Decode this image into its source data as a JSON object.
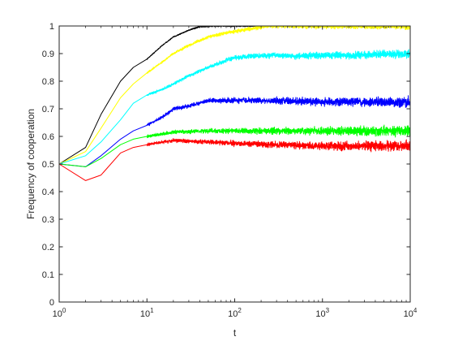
{
  "chart_data": {
    "type": "line",
    "title": "",
    "xlabel": "t",
    "ylabel": "Frequency of cooperation",
    "xscale": "log",
    "xlim": [
      1,
      10000
    ],
    "ylim": [
      0,
      1
    ],
    "grid": false,
    "legend": "none",
    "x_ticks": [
      {
        "value": 1,
        "base": "10",
        "exp": "0"
      },
      {
        "value": 10,
        "base": "10",
        "exp": "1"
      },
      {
        "value": 100,
        "base": "10",
        "exp": "2"
      },
      {
        "value": 1000,
        "base": "10",
        "exp": "3"
      },
      {
        "value": 10000,
        "base": "10",
        "exp": "4"
      }
    ],
    "y_ticks": [
      {
        "value": 0,
        "label": "0"
      },
      {
        "value": 0.1,
        "label": "0.1"
      },
      {
        "value": 0.2,
        "label": "0.2"
      },
      {
        "value": 0.3,
        "label": "0.3"
      },
      {
        "value": 0.4,
        "label": "0.4"
      },
      {
        "value": 0.5,
        "label": "0.5"
      },
      {
        "value": 0.6,
        "label": "0.6"
      },
      {
        "value": 0.7,
        "label": "0.7"
      },
      {
        "value": 0.8,
        "label": "0.8"
      },
      {
        "value": 0.9,
        "label": "0.9"
      },
      {
        "value": 1,
        "label": "1"
      }
    ],
    "series": [
      {
        "color": "#000000",
        "noise": 0.004,
        "points": [
          [
            1,
            0.5
          ],
          [
            2,
            0.56
          ],
          [
            3,
            0.68
          ],
          [
            5,
            0.8
          ],
          [
            7,
            0.85
          ],
          [
            10,
            0.88
          ],
          [
            15,
            0.93
          ],
          [
            20,
            0.96
          ],
          [
            30,
            0.985
          ],
          [
            40,
            0.997
          ],
          [
            60,
            1
          ],
          [
            100,
            1
          ],
          [
            10000,
            1
          ]
        ]
      },
      {
        "color": "#ffff00",
        "noise": 0.008,
        "points": [
          [
            1,
            0.5
          ],
          [
            2,
            0.545
          ],
          [
            3,
            0.63
          ],
          [
            5,
            0.74
          ],
          [
            7,
            0.79
          ],
          [
            10,
            0.83
          ],
          [
            15,
            0.87
          ],
          [
            20,
            0.9
          ],
          [
            30,
            0.93
          ],
          [
            50,
            0.96
          ],
          [
            80,
            0.975
          ],
          [
            150,
            0.99
          ],
          [
            250,
            1
          ],
          [
            10000,
            1
          ]
        ]
      },
      {
        "color": "#00ffff",
        "noise": 0.01,
        "points": [
          [
            1,
            0.5
          ],
          [
            2,
            0.53
          ],
          [
            3,
            0.58
          ],
          [
            5,
            0.66
          ],
          [
            7,
            0.72
          ],
          [
            10,
            0.75
          ],
          [
            15,
            0.77
          ],
          [
            20,
            0.79
          ],
          [
            30,
            0.82
          ],
          [
            50,
            0.85
          ],
          [
            80,
            0.875
          ],
          [
            100,
            0.885
          ],
          [
            150,
            0.89
          ],
          [
            300,
            0.895
          ],
          [
            500,
            0.89
          ],
          [
            1000,
            0.895
          ],
          [
            2000,
            0.893
          ],
          [
            10000,
            0.9
          ]
        ]
      },
      {
        "color": "#0000ff",
        "noise": 0.012,
        "points": [
          [
            1,
            0.5
          ],
          [
            2,
            0.49
          ],
          [
            3,
            0.53
          ],
          [
            5,
            0.59
          ],
          [
            7,
            0.62
          ],
          [
            10,
            0.64
          ],
          [
            15,
            0.67
          ],
          [
            20,
            0.7
          ],
          [
            30,
            0.71
          ],
          [
            50,
            0.73
          ],
          [
            100,
            0.73
          ],
          [
            300,
            0.73
          ],
          [
            1000,
            0.725
          ],
          [
            10000,
            0.725
          ]
        ]
      },
      {
        "color": "#00ff00",
        "noise": 0.012,
        "points": [
          [
            1,
            0.5
          ],
          [
            2,
            0.49
          ],
          [
            3,
            0.52
          ],
          [
            5,
            0.57
          ],
          [
            7,
            0.59
          ],
          [
            10,
            0.6
          ],
          [
            20,
            0.615
          ],
          [
            50,
            0.62
          ],
          [
            100,
            0.62
          ],
          [
            1000,
            0.62
          ],
          [
            10000,
            0.62
          ]
        ]
      },
      {
        "color": "#ff0000",
        "noise": 0.012,
        "points": [
          [
            1,
            0.5
          ],
          [
            2,
            0.44
          ],
          [
            3,
            0.46
          ],
          [
            5,
            0.54
          ],
          [
            7,
            0.56
          ],
          [
            10,
            0.57
          ],
          [
            15,
            0.58
          ],
          [
            20,
            0.585
          ],
          [
            50,
            0.58
          ],
          [
            100,
            0.575
          ],
          [
            1000,
            0.565
          ],
          [
            10000,
            0.565
          ]
        ]
      }
    ]
  }
}
